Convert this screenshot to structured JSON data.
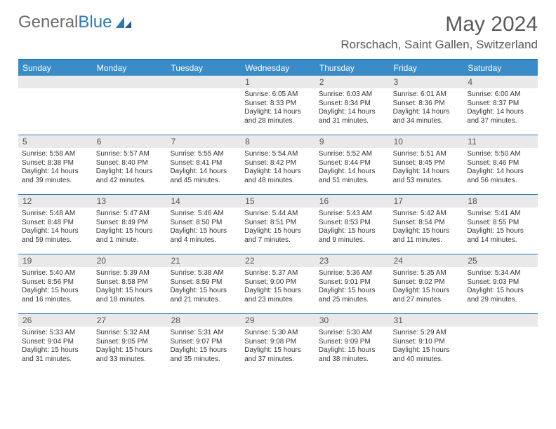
{
  "brand": {
    "part1": "General",
    "part2": "Blue"
  },
  "title": "May 2024",
  "location": "Rorschach, Saint Gallen, Switzerland",
  "colors": {
    "header_bar": "#3a8cc9",
    "border": "#2a7ab8",
    "daynum_bg": "#e9e9e9",
    "text": "#333333",
    "muted": "#5a5a5a",
    "white": "#ffffff"
  },
  "weekdays": [
    "Sunday",
    "Monday",
    "Tuesday",
    "Wednesday",
    "Thursday",
    "Friday",
    "Saturday"
  ],
  "weeks": [
    [
      {
        "n": "",
        "sr": "",
        "ss": "",
        "dl": ""
      },
      {
        "n": "",
        "sr": "",
        "ss": "",
        "dl": ""
      },
      {
        "n": "",
        "sr": "",
        "ss": "",
        "dl": ""
      },
      {
        "n": "1",
        "sr": "Sunrise: 6:05 AM",
        "ss": "Sunset: 8:33 PM",
        "dl": "Daylight: 14 hours and 28 minutes."
      },
      {
        "n": "2",
        "sr": "Sunrise: 6:03 AM",
        "ss": "Sunset: 8:34 PM",
        "dl": "Daylight: 14 hours and 31 minutes."
      },
      {
        "n": "3",
        "sr": "Sunrise: 6:01 AM",
        "ss": "Sunset: 8:36 PM",
        "dl": "Daylight: 14 hours and 34 minutes."
      },
      {
        "n": "4",
        "sr": "Sunrise: 6:00 AM",
        "ss": "Sunset: 8:37 PM",
        "dl": "Daylight: 14 hours and 37 minutes."
      }
    ],
    [
      {
        "n": "5",
        "sr": "Sunrise: 5:58 AM",
        "ss": "Sunset: 8:38 PM",
        "dl": "Daylight: 14 hours and 39 minutes."
      },
      {
        "n": "6",
        "sr": "Sunrise: 5:57 AM",
        "ss": "Sunset: 8:40 PM",
        "dl": "Daylight: 14 hours and 42 minutes."
      },
      {
        "n": "7",
        "sr": "Sunrise: 5:55 AM",
        "ss": "Sunset: 8:41 PM",
        "dl": "Daylight: 14 hours and 45 minutes."
      },
      {
        "n": "8",
        "sr": "Sunrise: 5:54 AM",
        "ss": "Sunset: 8:42 PM",
        "dl": "Daylight: 14 hours and 48 minutes."
      },
      {
        "n": "9",
        "sr": "Sunrise: 5:52 AM",
        "ss": "Sunset: 8:44 PM",
        "dl": "Daylight: 14 hours and 51 minutes."
      },
      {
        "n": "10",
        "sr": "Sunrise: 5:51 AM",
        "ss": "Sunset: 8:45 PM",
        "dl": "Daylight: 14 hours and 53 minutes."
      },
      {
        "n": "11",
        "sr": "Sunrise: 5:50 AM",
        "ss": "Sunset: 8:46 PM",
        "dl": "Daylight: 14 hours and 56 minutes."
      }
    ],
    [
      {
        "n": "12",
        "sr": "Sunrise: 5:48 AM",
        "ss": "Sunset: 8:48 PM",
        "dl": "Daylight: 14 hours and 59 minutes."
      },
      {
        "n": "13",
        "sr": "Sunrise: 5:47 AM",
        "ss": "Sunset: 8:49 PM",
        "dl": "Daylight: 15 hours and 1 minute."
      },
      {
        "n": "14",
        "sr": "Sunrise: 5:46 AM",
        "ss": "Sunset: 8:50 PM",
        "dl": "Daylight: 15 hours and 4 minutes."
      },
      {
        "n": "15",
        "sr": "Sunrise: 5:44 AM",
        "ss": "Sunset: 8:51 PM",
        "dl": "Daylight: 15 hours and 7 minutes."
      },
      {
        "n": "16",
        "sr": "Sunrise: 5:43 AM",
        "ss": "Sunset: 8:53 PM",
        "dl": "Daylight: 15 hours and 9 minutes."
      },
      {
        "n": "17",
        "sr": "Sunrise: 5:42 AM",
        "ss": "Sunset: 8:54 PM",
        "dl": "Daylight: 15 hours and 11 minutes."
      },
      {
        "n": "18",
        "sr": "Sunrise: 5:41 AM",
        "ss": "Sunset: 8:55 PM",
        "dl": "Daylight: 15 hours and 14 minutes."
      }
    ],
    [
      {
        "n": "19",
        "sr": "Sunrise: 5:40 AM",
        "ss": "Sunset: 8:56 PM",
        "dl": "Daylight: 15 hours and 16 minutes."
      },
      {
        "n": "20",
        "sr": "Sunrise: 5:39 AM",
        "ss": "Sunset: 8:58 PM",
        "dl": "Daylight: 15 hours and 18 minutes."
      },
      {
        "n": "21",
        "sr": "Sunrise: 5:38 AM",
        "ss": "Sunset: 8:59 PM",
        "dl": "Daylight: 15 hours and 21 minutes."
      },
      {
        "n": "22",
        "sr": "Sunrise: 5:37 AM",
        "ss": "Sunset: 9:00 PM",
        "dl": "Daylight: 15 hours and 23 minutes."
      },
      {
        "n": "23",
        "sr": "Sunrise: 5:36 AM",
        "ss": "Sunset: 9:01 PM",
        "dl": "Daylight: 15 hours and 25 minutes."
      },
      {
        "n": "24",
        "sr": "Sunrise: 5:35 AM",
        "ss": "Sunset: 9:02 PM",
        "dl": "Daylight: 15 hours and 27 minutes."
      },
      {
        "n": "25",
        "sr": "Sunrise: 5:34 AM",
        "ss": "Sunset: 9:03 PM",
        "dl": "Daylight: 15 hours and 29 minutes."
      }
    ],
    [
      {
        "n": "26",
        "sr": "Sunrise: 5:33 AM",
        "ss": "Sunset: 9:04 PM",
        "dl": "Daylight: 15 hours and 31 minutes."
      },
      {
        "n": "27",
        "sr": "Sunrise: 5:32 AM",
        "ss": "Sunset: 9:05 PM",
        "dl": "Daylight: 15 hours and 33 minutes."
      },
      {
        "n": "28",
        "sr": "Sunrise: 5:31 AM",
        "ss": "Sunset: 9:07 PM",
        "dl": "Daylight: 15 hours and 35 minutes."
      },
      {
        "n": "29",
        "sr": "Sunrise: 5:30 AM",
        "ss": "Sunset: 9:08 PM",
        "dl": "Daylight: 15 hours and 37 minutes."
      },
      {
        "n": "30",
        "sr": "Sunrise: 5:30 AM",
        "ss": "Sunset: 9:09 PM",
        "dl": "Daylight: 15 hours and 38 minutes."
      },
      {
        "n": "31",
        "sr": "Sunrise: 5:29 AM",
        "ss": "Sunset: 9:10 PM",
        "dl": "Daylight: 15 hours and 40 minutes."
      },
      {
        "n": "",
        "sr": "",
        "ss": "",
        "dl": ""
      }
    ]
  ]
}
